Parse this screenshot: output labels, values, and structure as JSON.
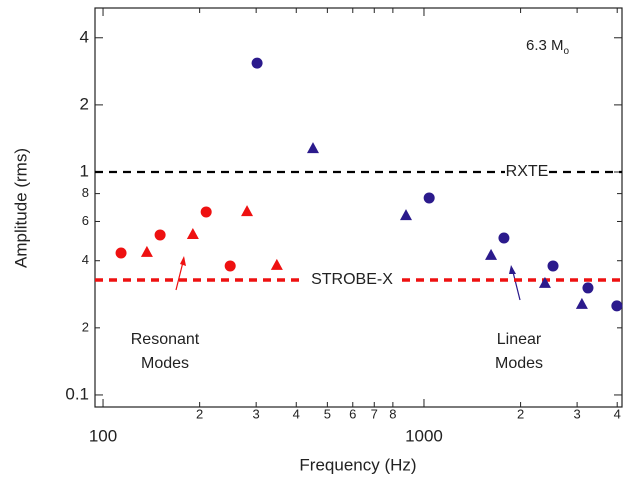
{
  "chart_data": {
    "type": "scatter",
    "x_label": "Frequency (Hz)",
    "y_label": "Amplitude (rms)",
    "xlog": true,
    "ylog": true,
    "xlim": [
      94.4,
      4140
    ],
    "ylim": [
      0.0883,
      5.44
    ],
    "xticks": [
      100,
      {
        "value": 200,
        "label": "2"
      },
      {
        "value": 300,
        "label": "3"
      },
      {
        "value": 400,
        "label": "4"
      },
      {
        "value": 500,
        "label": "5"
      },
      {
        "value": 600,
        "label": "6"
      },
      {
        "value": 700,
        "label": "7"
      },
      {
        "value": 800,
        "label": "8"
      },
      1000,
      {
        "value": 2000,
        "label": "2"
      },
      {
        "value": 3000,
        "label": "3"
      },
      {
        "value": 4000,
        "label": "4"
      }
    ],
    "yticks": [
      0.1,
      {
        "value": 0.2,
        "label": "2"
      },
      {
        "value": 0.4,
        "label": "4"
      },
      {
        "value": 0.6,
        "label": "6"
      },
      {
        "value": 0.8,
        "label": "8"
      },
      1,
      2,
      4
    ],
    "annotation": {
      "text": "6.3 M",
      "sub": "o"
    },
    "hlines": [
      {
        "value": 1,
        "label": "RXTE",
        "color": "#000000"
      },
      {
        "value": 0.328,
        "label": "STROBE-X",
        "color": "#ee1111"
      }
    ],
    "groups": [
      {
        "label": [
          "Resonant",
          "Modes"
        ],
        "color": "#ee1111"
      },
      {
        "label": [
          "Linear",
          "Modes"
        ],
        "color": "#2b1a8c"
      }
    ],
    "series": [
      {
        "color": "#ee1111",
        "marker": "circle",
        "x": [
          113.8,
          150.6,
          209.6,
          249
        ],
        "values": [
          0.433,
          0.522,
          0.662,
          0.379
        ]
      },
      {
        "color": "#ee1111",
        "marker": "triangle",
        "x": [
          137,
          190.5,
          281,
          348
        ],
        "values": [
          0.438,
          0.527,
          0.668,
          0.383
        ]
      },
      {
        "color": "#2b1a8c",
        "marker": "circle",
        "x": [
          302,
          1038,
          1775,
          2524,
          3243,
          3990
        ],
        "values": [
          3.08,
          0.765,
          0.506,
          0.379,
          0.302,
          0.251
        ]
      },
      {
        "color": "#2b1a8c",
        "marker": "triangle",
        "x": [
          451,
          879,
          1618,
          2382,
          3105
        ],
        "values": [
          1.28,
          0.641,
          0.425,
          0.318,
          0.256
        ]
      }
    ]
  }
}
